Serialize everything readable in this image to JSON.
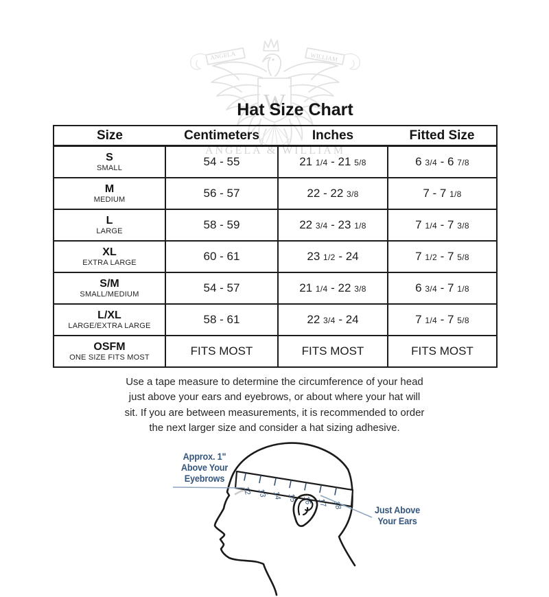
{
  "watermark": {
    "banner_left": "ANGELA",
    "banner_right": "WILLIAM",
    "monogram": "W",
    "name_text": "ANGELA & WILLIAM"
  },
  "title": "Hat Size Chart",
  "table": {
    "headers": [
      "Size",
      "Centimeters",
      "Inches",
      "Fitted Size"
    ],
    "rows": [
      {
        "code": "S",
        "label": "SMALL",
        "cm": "54 - 55",
        "inches": "21 1/4 - 21 5/8",
        "fitted": "6 3/4 - 6 7/8"
      },
      {
        "code": "M",
        "label": "MEDIUM",
        "cm": "56 - 57",
        "inches": "22 - 22 3/8",
        "fitted": "7 - 7 1/8"
      },
      {
        "code": "L",
        "label": "LARGE",
        "cm": "58 - 59",
        "inches": "22 3/4 - 23 1/8",
        "fitted": "7 1/4 - 7 3/8"
      },
      {
        "code": "XL",
        "label": "EXTRA LARGE",
        "cm": "60 - 61",
        "inches": "23 1/2 - 24",
        "fitted": "7 1/2 - 7 5/8"
      },
      {
        "code": "S/M",
        "label": "SMALL/MEDIUM",
        "cm": "54 - 57",
        "inches": "21 1/4 - 22 3/8",
        "fitted": "6 3/4 - 7 1/8"
      },
      {
        "code": "L/XL",
        "label": "LARGE/EXTRA LARGE",
        "cm": "58 - 61",
        "inches": "22 3/4 - 24",
        "fitted": "7 1/4 - 7 5/8"
      },
      {
        "code": "OSFM",
        "label": "ONE SIZE FITS MOST",
        "cm": "FITS MOST",
        "inches": "FITS MOST",
        "fitted": "FITS MOST"
      }
    ]
  },
  "instructions": "Use a tape measure to determine the circumference of your head\njust above your ears and eyebrows, or about where your hat will\nsit. If you are between measurements, it is recommended to order\nthe next larger size and consider a hat sizing adhesive.",
  "diagram": {
    "annotation_left": "Approx. 1\"\nAbove Your\nEyebrows",
    "annotation_right": "Just Above\nYour Ears",
    "tape_numbers": [
      "12",
      "13",
      "14",
      "15",
      "16",
      "17",
      "18"
    ],
    "colors": {
      "annotation_blue": "#35567c",
      "leader_line": "#8ca4bd",
      "outline_black": "#1a1a1a",
      "eyebrow_gray": "#cccccc"
    }
  }
}
